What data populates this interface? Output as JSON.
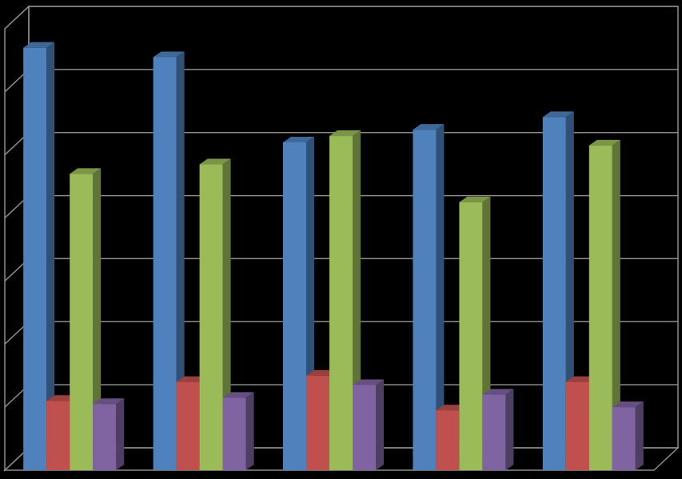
{
  "chart_data": {
    "type": "bar",
    "title": "",
    "xlabel": "",
    "ylabel": "",
    "categories": [
      "",
      "",
      "",
      "",
      ""
    ],
    "ylim": [
      0,
      7
    ],
    "grid": true,
    "legend": "none",
    "series": [
      {
        "color": "#4F81BD",
        "values": [
          6.7,
          6.55,
          5.2,
          5.4,
          5.6
        ]
      },
      {
        "color": "#C0504D",
        "values": [
          1.1,
          1.4,
          1.5,
          0.95,
          1.4
        ]
      },
      {
        "color": "#9BBB59",
        "values": [
          4.7,
          4.85,
          5.3,
          4.25,
          5.15
        ]
      },
      {
        "color": "#8064A2",
        "values": [
          1.05,
          1.15,
          1.35,
          1.2,
          1.0
        ]
      }
    ]
  }
}
